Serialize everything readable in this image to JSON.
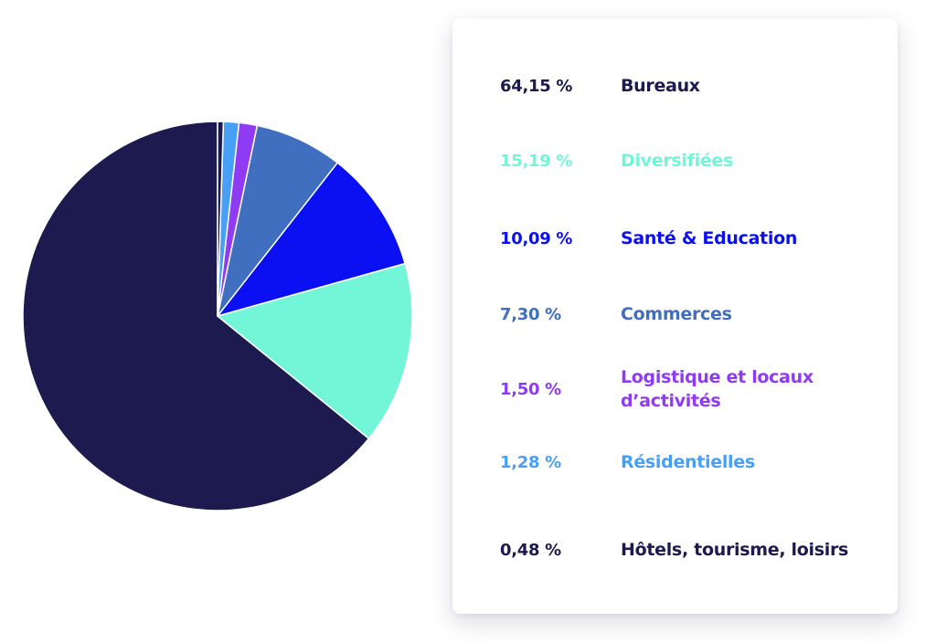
{
  "chart_data": {
    "type": "pie",
    "slices": [
      {
        "label": "Bureaux",
        "value_label": "64,15 %",
        "value": 64.15,
        "color": "#1c1a4f"
      },
      {
        "label": "Diversifiées",
        "value_label": "15,19 %",
        "value": 15.19,
        "color": "#72f6d7"
      },
      {
        "label": "Santé & Education",
        "value_label": "10,09 %",
        "value": 10.09,
        "color": "#0a10f1"
      },
      {
        "label": "Commerces",
        "value_label": "7,30 %",
        "value": 7.3,
        "color": "#3f6fbe"
      },
      {
        "label": "Logistique et locaux d’activités",
        "value_label": "1,50 %",
        "value": 1.5,
        "color": "#8f3bf3"
      },
      {
        "label": "Résidentielles",
        "value_label": "1,28 %",
        "value": 1.28,
        "color": "#47a0f6"
      },
      {
        "label": "Hôtels, tourisme, loisirs",
        "value_label": "0,48 %",
        "value": 0.48,
        "color": "#1c1a4f"
      }
    ]
  }
}
